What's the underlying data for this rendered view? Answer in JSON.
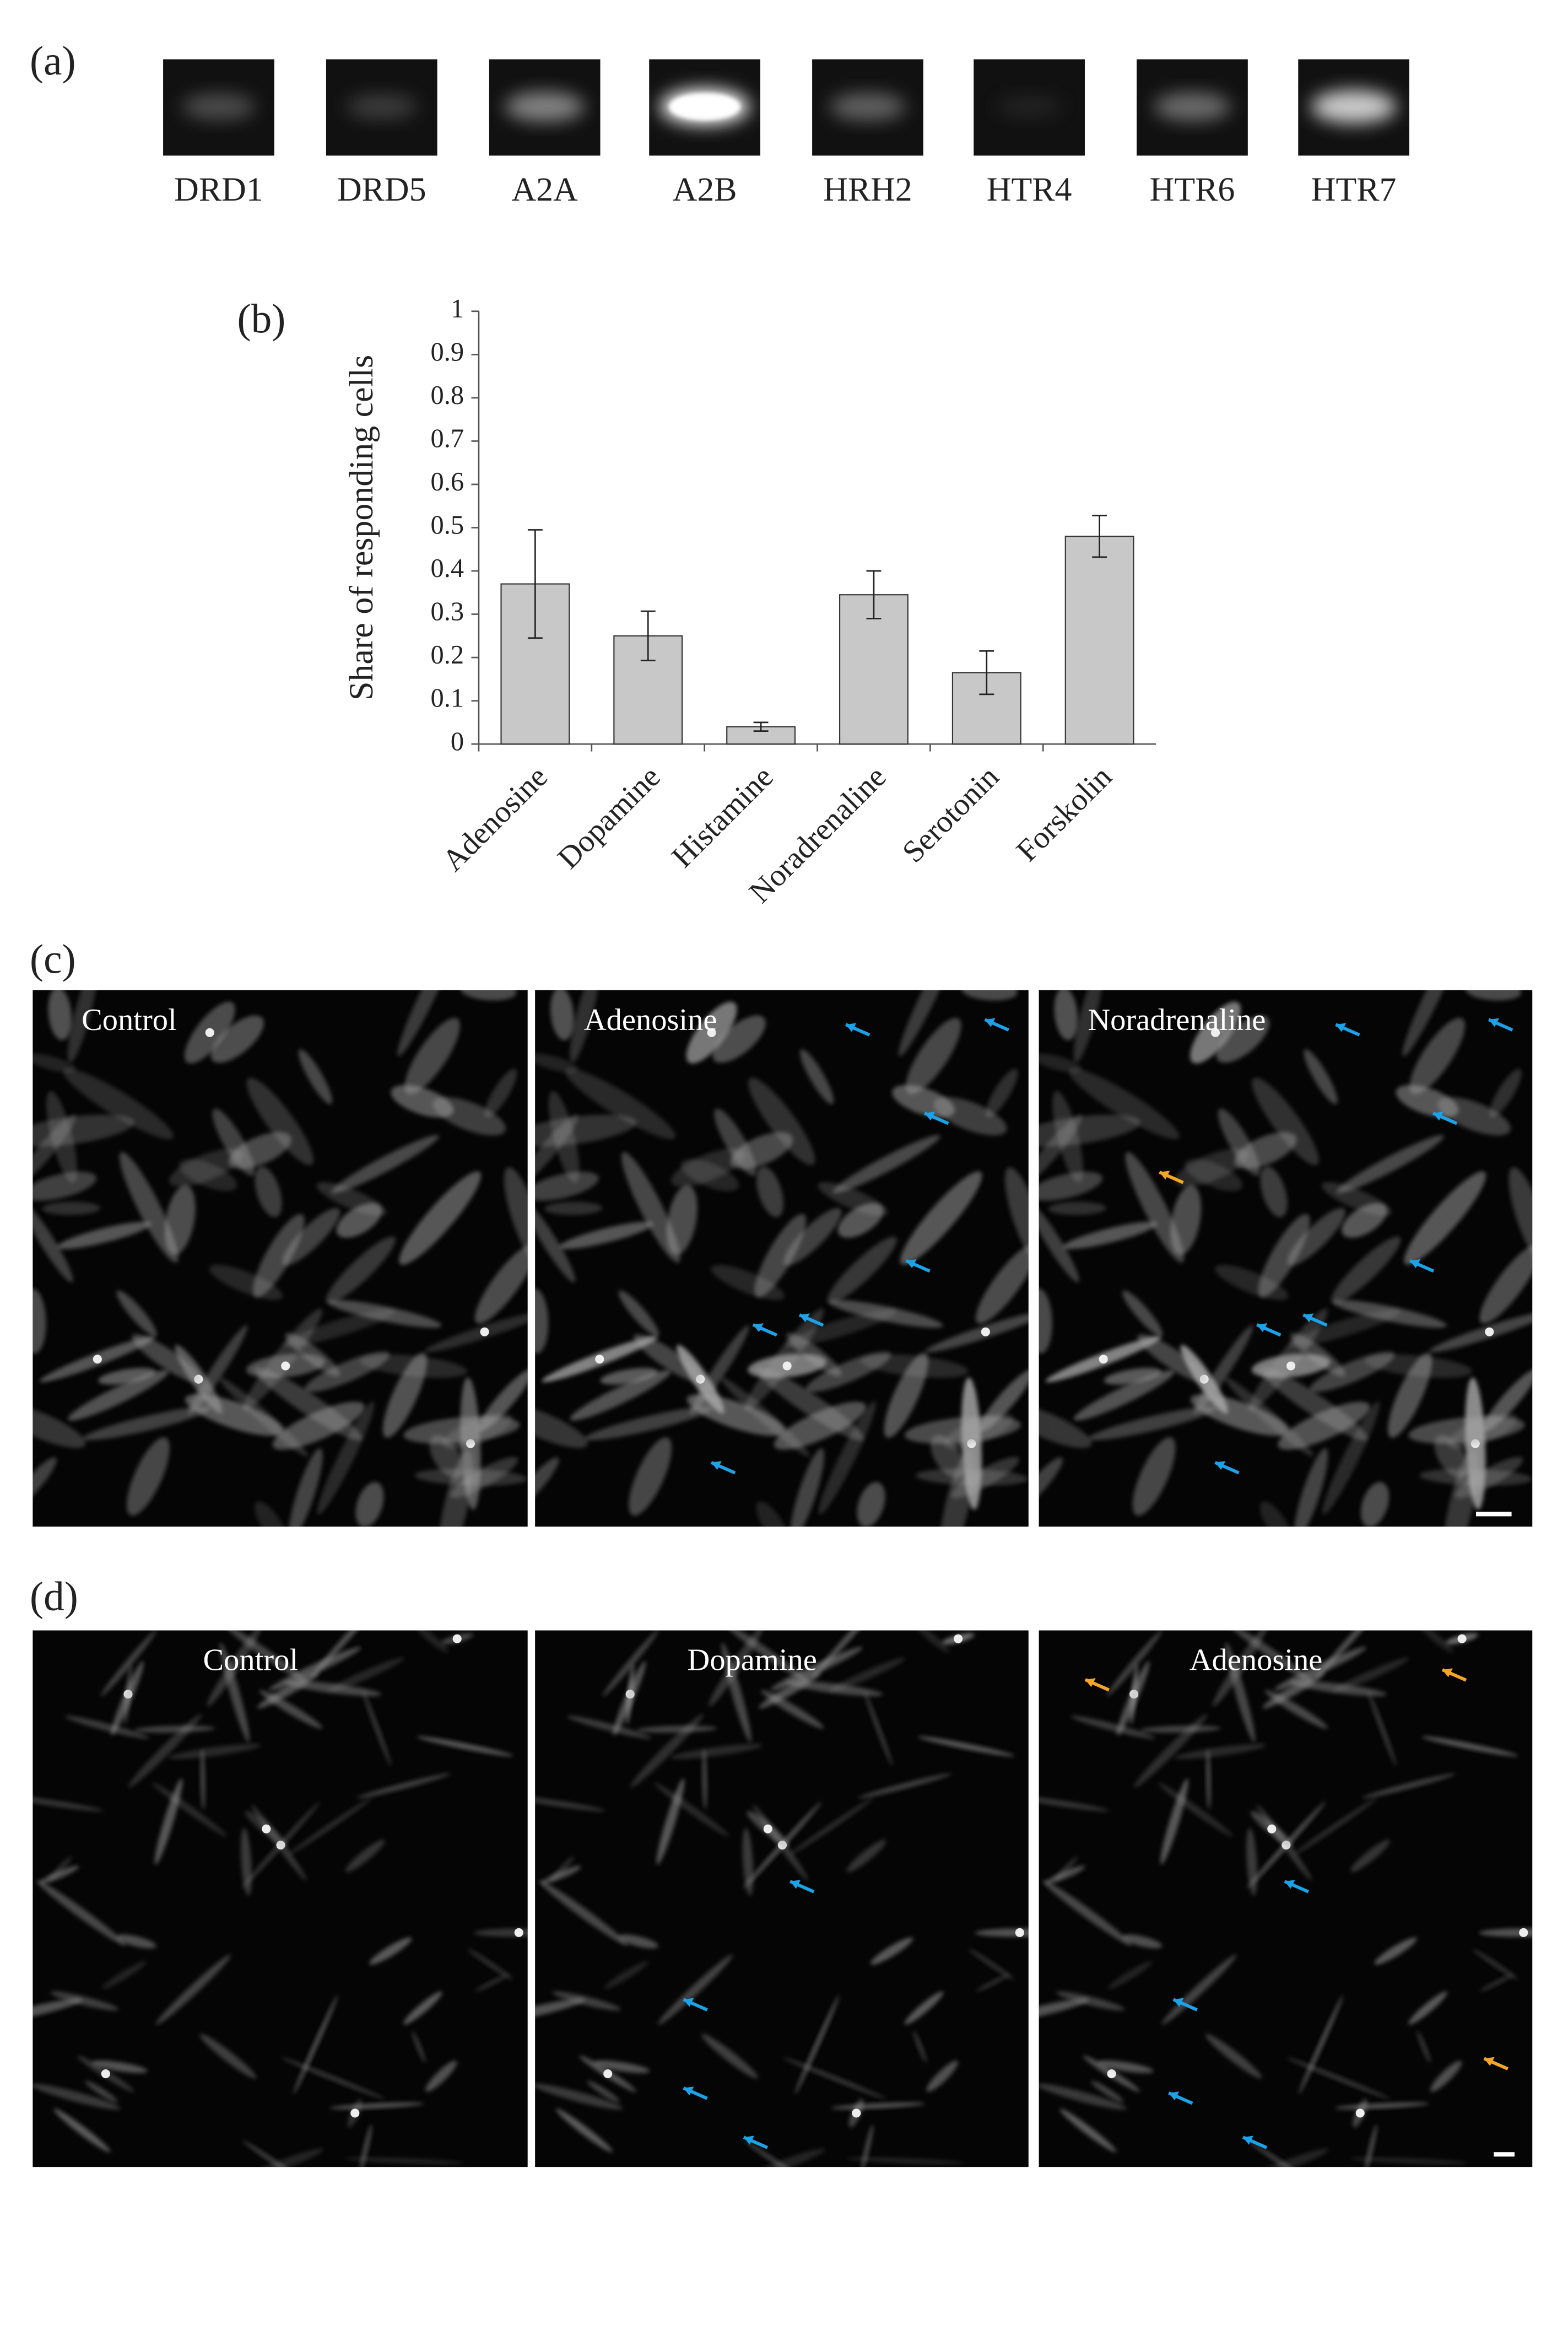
{
  "panel_labels": [
    "(a)",
    "(b)",
    "(c)",
    "(d)"
  ],
  "gel": {
    "lanes": [
      "DRD1",
      "DRD5",
      "A2A",
      "A2B",
      "HRH2",
      "HTR4",
      "HTR6",
      "HTR7"
    ]
  },
  "chart_data": {
    "type": "bar",
    "ylabel": "Share of responding cells",
    "categories": [
      "Adenosine",
      "Dopamine",
      "Histamine",
      "Noradrenaline",
      "Serotonin",
      "Forskolin"
    ],
    "values": [
      0.37,
      0.25,
      0.04,
      0.345,
      0.165,
      0.48
    ],
    "errors": [
      0.125,
      0.057,
      0.01,
      0.055,
      0.05,
      0.048
    ],
    "color": "#c8c8c8",
    "ylim": [
      0,
      1
    ],
    "yticks": [
      0,
      0.1,
      0.2,
      0.3,
      0.4,
      0.5,
      0.6,
      0.7,
      0.8,
      0.9,
      1
    ]
  },
  "images_c": [
    "Control",
    "Adenosine",
    "Noradrenaline"
  ],
  "images_d": [
    "Control",
    "Dopamine",
    "Adenosine"
  ]
}
